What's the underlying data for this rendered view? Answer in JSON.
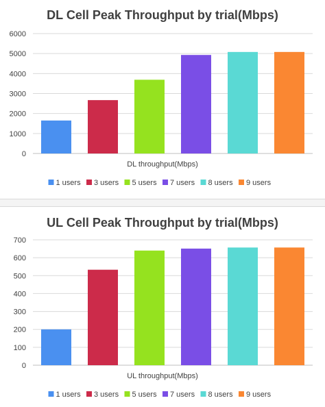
{
  "chart_data": [
    {
      "type": "bar",
      "title": "DL Cell Peak Throughput by trial(Mbps)",
      "xlabel": "DL throughput(Mbps)",
      "ylabel": "",
      "ylim": [
        0,
        6000
      ],
      "yticks": [
        0,
        1000,
        2000,
        3000,
        4000,
        5000,
        6000
      ],
      "grid": true,
      "legend_position": "bottom",
      "series": [
        {
          "name": "1 users",
          "color": "#4a90f0",
          "values": [
            1650
          ]
        },
        {
          "name": "3 users",
          "color": "#cc2b4a",
          "values": [
            2670
          ]
        },
        {
          "name": "5 users",
          "color": "#95e21f",
          "values": [
            3690
          ]
        },
        {
          "name": "7 users",
          "color": "#7a4ee6",
          "values": [
            4930
          ]
        },
        {
          "name": "8 users",
          "color": "#5ad9d4",
          "values": [
            5080
          ]
        },
        {
          "name": "9 users",
          "color": "#fa8732",
          "values": [
            5080
          ]
        }
      ]
    },
    {
      "type": "bar",
      "title": "UL Cell Peak Throughput by trial(Mbps)",
      "xlabel": "UL throughput(Mbps)",
      "ylabel": "",
      "ylim": [
        0,
        700
      ],
      "yticks": [
        0,
        100,
        200,
        300,
        400,
        500,
        600,
        700
      ],
      "grid": true,
      "legend_position": "bottom",
      "series": [
        {
          "name": "1 users",
          "color": "#4a90f0",
          "values": [
            200
          ]
        },
        {
          "name": "3 users",
          "color": "#cc2b4a",
          "values": [
            533
          ]
        },
        {
          "name": "5 users",
          "color": "#95e21f",
          "values": [
            640
          ]
        },
        {
          "name": "7 users",
          "color": "#7a4ee6",
          "values": [
            651
          ]
        },
        {
          "name": "8 users",
          "color": "#5ad9d4",
          "values": [
            657
          ]
        },
        {
          "name": "9 users",
          "color": "#fa8732",
          "values": [
            657
          ]
        }
      ]
    }
  ]
}
